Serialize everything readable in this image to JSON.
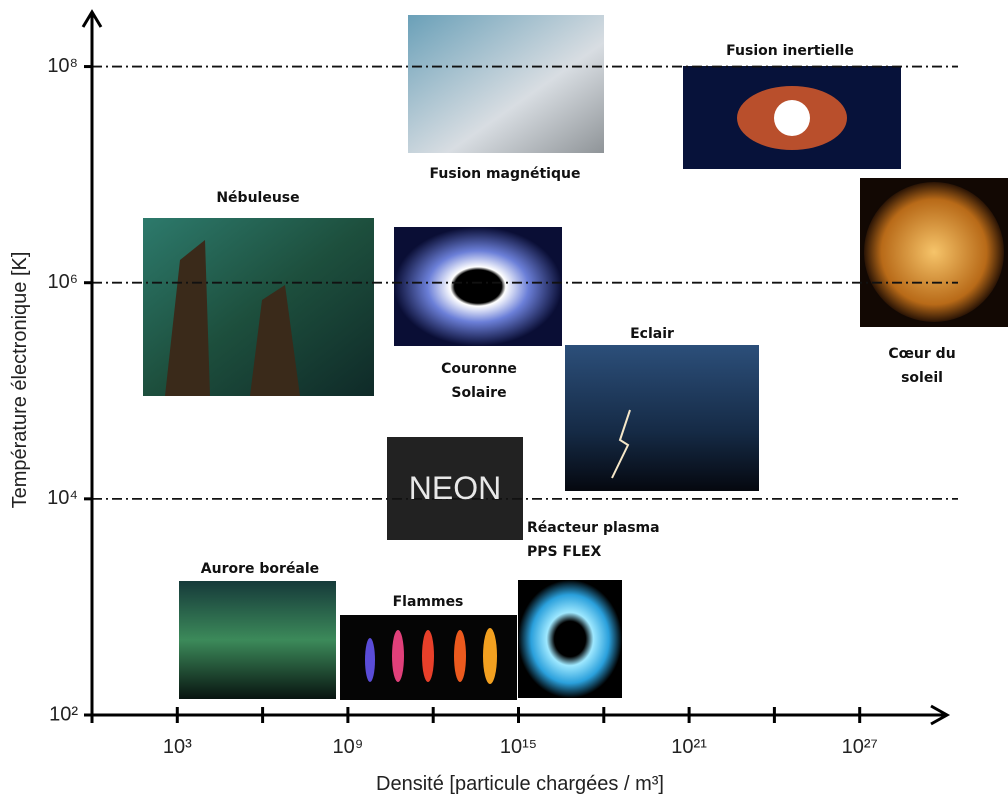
{
  "chart_data": {
    "type": "annotated-map",
    "x_label": "Densité [particule chargées / m³]",
    "y_label": "Température électronique [K]",
    "xscale": "log",
    "yscale": "log",
    "xlim": [
      1,
      1e+30
    ],
    "ylim": [
      100,
      300000000.0
    ],
    "xticks": [
      {
        "value": 1000.0,
        "label": "10³"
      },
      {
        "value": 1000000000.0,
        "label": "10⁹"
      },
      {
        "value": 1000000000000000.0,
        "label": "10¹⁵"
      },
      {
        "value": 1e+21,
        "label": "10²¹"
      },
      {
        "value": 1e+27,
        "label": "10²⁷"
      }
    ],
    "xminor": [
      1000000.0,
      1000000000000.0,
      1e+18,
      1e+24
    ],
    "yticks": [
      {
        "value": 100,
        "label": "10²"
      },
      {
        "value": 10000.0,
        "label": "10⁴"
      },
      {
        "value": 1000000.0,
        "label": "10⁶"
      },
      {
        "value": 100000000.0,
        "label": "10⁸"
      }
    ],
    "grid": true,
    "annotations": [
      {
        "lines": [
          "Fusion magnétique"
        ]
      },
      {
        "lines": [
          "Fusion inertielle"
        ]
      },
      {
        "lines": [
          "Nébuleuse"
        ]
      },
      {
        "lines": [
          "Couronne",
          "Solaire"
        ]
      },
      {
        "lines": [
          "Cœur du",
          "soleil"
        ]
      },
      {
        "lines": [
          "Eclair"
        ]
      },
      {
        "lines": [
          "NEON"
        ]
      },
      {
        "lines": [
          "Réacteur plasma",
          "PPS FLEX"
        ]
      },
      {
        "lines": [
          "Aurore boréale"
        ]
      },
      {
        "lines": [
          "Flammes"
        ]
      }
    ]
  }
}
